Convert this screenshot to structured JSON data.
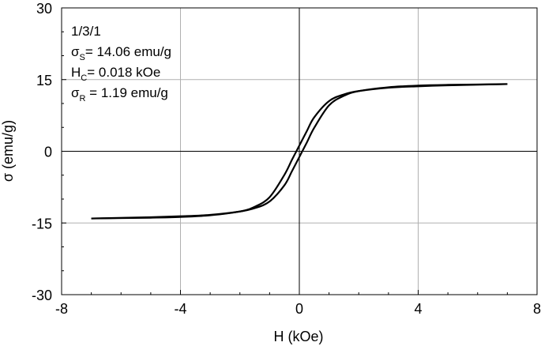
{
  "chart_data": {
    "type": "line",
    "title": "",
    "xlabel": "H (kOe)",
    "ylabel": "σ (emu/g)",
    "xlim": [
      -8,
      8
    ],
    "ylim": [
      -30,
      30
    ],
    "xticks": [
      -8,
      -4,
      0,
      4,
      8
    ],
    "yticks": [
      -30,
      -15,
      0,
      15,
      30
    ],
    "xtick_labels": [
      "-8",
      "-4",
      "0",
      "4",
      "8"
    ],
    "ytick_labels": [
      "-30",
      "-15",
      "0",
      "15",
      "30"
    ],
    "grid": true,
    "colors": {
      "line": "#000000",
      "grid": "#b0b0b0",
      "zero_line": "#000000"
    },
    "series": [
      {
        "name": "",
        "x": [
          -7.0,
          -5.0,
          -4.0,
          -3.0,
          -2.0,
          -1.5,
          -1.0,
          -0.5,
          -0.25,
          0.0,
          0.25,
          0.5,
          1.0,
          1.5,
          2.0,
          3.0,
          4.0,
          5.0,
          7.0
        ],
        "y": [
          -14.06,
          -13.8,
          -13.6,
          -13.3,
          -12.6,
          -11.9,
          -10.5,
          -7.1,
          -4.2,
          -1.19,
          1.8,
          4.9,
          9.6,
          11.6,
          12.6,
          13.4,
          13.75,
          13.9,
          14.06
        ]
      },
      {
        "name": "",
        "x": [
          -7.0,
          -5.0,
          -4.0,
          -3.0,
          -2.0,
          -1.5,
          -1.0,
          -0.5,
          -0.25,
          0.0,
          0.25,
          0.5,
          1.0,
          1.5,
          2.0,
          3.0,
          4.0,
          5.0,
          7.0
        ],
        "y": [
          -14.06,
          -13.9,
          -13.75,
          -13.4,
          -12.6,
          -11.6,
          -9.6,
          -4.9,
          -1.8,
          1.19,
          4.2,
          7.1,
          10.5,
          11.9,
          12.6,
          13.3,
          13.6,
          13.8,
          14.06
        ]
      }
    ],
    "annotations": {
      "sample": "1/3/1",
      "ms_symbol": "σ",
      "ms_sub": "S",
      "ms_value": "= 14.06 emu/g",
      "hc_symbol": "H",
      "hc_sub": "C",
      "hc_value": "= 0.018 kOe",
      "mr_symbol": "σ",
      "mr_sub": "R",
      "mr_value": " = 1.19 emu/g"
    }
  }
}
